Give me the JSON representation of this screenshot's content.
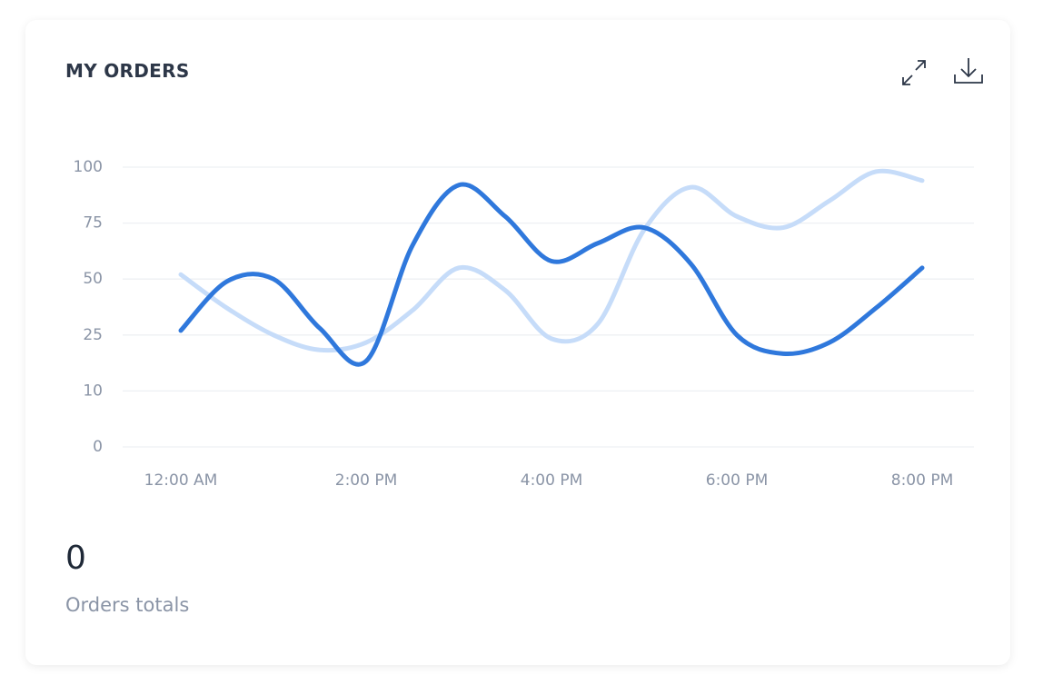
{
  "chart_data": {
    "type": "line",
    "title": "MY ORDERS",
    "categories": [
      "12:00 AM",
      null,
      null,
      null,
      "2:00 PM",
      null,
      null,
      null,
      "4:00 PM",
      null,
      null,
      null,
      "6:00 PM",
      null,
      null,
      null,
      "8:00 PM"
    ],
    "series": [
      {
        "color": "#c6dcf9",
        "values": [
          52,
          37,
          25,
          21,
          23,
          36,
          55,
          45,
          24,
          30,
          72,
          91,
          78,
          73,
          85,
          98,
          94
        ]
      },
      {
        "color": "#2f78dc",
        "values": [
          27,
          49,
          50,
          28,
          18,
          65,
          92,
          78,
          58,
          66,
          73,
          57,
          25,
          20,
          23,
          37,
          55
        ]
      }
    ],
    "ylim": [
      0,
      100
    ],
    "yticks": [
      0,
      10,
      25,
      50,
      75,
      100
    ],
    "grid": true
  },
  "summary": {
    "value": "0",
    "label": "Orders totals"
  }
}
